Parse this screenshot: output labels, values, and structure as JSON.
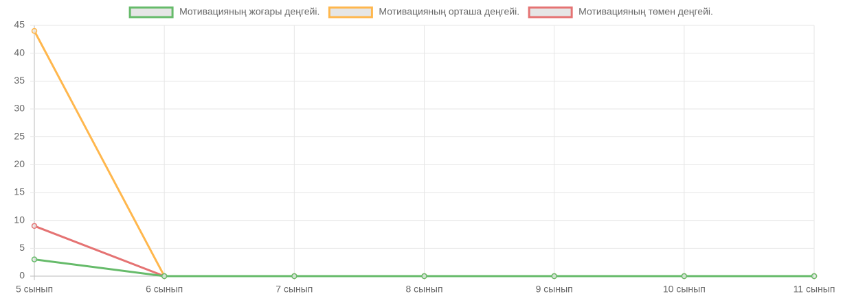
{
  "chart_data": {
    "type": "line",
    "categories": [
      "5 сынып",
      "6 сынып",
      "7 сынып",
      "8 сынып",
      "9 сынып",
      "10 сынып",
      "11 сынып"
    ],
    "series": [
      {
        "name": "Мотивацияның жоғары деңгейі.",
        "color": "#66bb6a",
        "values": [
          3,
          0,
          0,
          0,
          0,
          0,
          0
        ]
      },
      {
        "name": "Мотивацияның орташа деңгейі.",
        "color": "#ffb74d",
        "values": [
          44,
          0,
          0,
          0,
          0,
          0,
          0
        ]
      },
      {
        "name": "Мотивацияның төмен деңгейі.",
        "color": "#e57373",
        "values": [
          9,
          0,
          0,
          0,
          0,
          0,
          0
        ]
      }
    ],
    "ylim": [
      0,
      45
    ],
    "yticks": [
      0,
      5,
      10,
      15,
      20,
      25,
      30,
      35,
      40,
      45
    ],
    "grid": true,
    "legend": "top"
  }
}
